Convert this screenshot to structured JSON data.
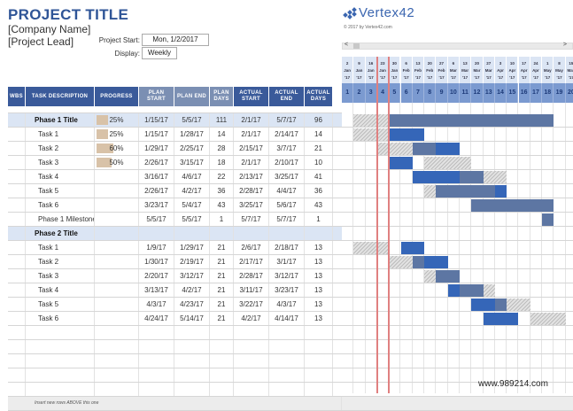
{
  "header": {
    "title": "PROJECT TITLE",
    "company": "[Company Name]",
    "lead": "[Project Lead]",
    "project_start_label": "Project Start:",
    "project_start_value": "Mon, 1/2/2017",
    "display_label": "Display:",
    "display_value": "Weekly"
  },
  "logo": {
    "text": "Vertex42",
    "copyright": "© 2017 by Vertex42.com"
  },
  "scroll": {
    "left": "<",
    "right": ">"
  },
  "columns": [
    "WBS",
    "TASK DESCRIPTION",
    "PROGRESS",
    "PLAN START",
    "PLAN END",
    "PLAN DAYS",
    "ACTUAL START",
    "ACTUAL END",
    "ACTUAL DAYS"
  ],
  "accent_colors": {
    "header_blue": "#3a5a9a",
    "header_gray": "#7b8fb3",
    "phase_row": "#dbe5f4",
    "progress": "#d8c2a8",
    "bar_plan": "#5d76a3",
    "bar_actual": "#3566b8",
    "today_line": "#e08080"
  },
  "rows": [
    {
      "type": "phase",
      "desc": "Phase 1 Title",
      "progress": "25%",
      "pct": 25,
      "plan_start": "1/15/17",
      "plan_end": "5/5/17",
      "plan_days": "111",
      "actual_start": "2/1/17",
      "actual_end": "5/7/17",
      "actual_days": "96"
    },
    {
      "type": "task",
      "desc": "Task 1",
      "progress": "25%",
      "pct": 25,
      "plan_start": "1/15/17",
      "plan_end": "1/28/17",
      "plan_days": "14",
      "actual_start": "2/1/17",
      "actual_end": "2/14/17",
      "actual_days": "14"
    },
    {
      "type": "task",
      "desc": "Task 2",
      "progress": "60%",
      "pct": 60,
      "plan_start": "1/29/17",
      "plan_end": "2/25/17",
      "plan_days": "28",
      "actual_start": "2/15/17",
      "actual_end": "3/7/17",
      "actual_days": "21"
    },
    {
      "type": "task",
      "desc": "Task 3",
      "progress": "50%",
      "pct": 50,
      "plan_start": "2/26/17",
      "plan_end": "3/15/17",
      "plan_days": "18",
      "actual_start": "2/1/17",
      "actual_end": "2/10/17",
      "actual_days": "10"
    },
    {
      "type": "task",
      "desc": "Task 4",
      "progress": "",
      "pct": 0,
      "plan_start": "3/16/17",
      "plan_end": "4/6/17",
      "plan_days": "22",
      "actual_start": "2/13/17",
      "actual_end": "3/25/17",
      "actual_days": "41"
    },
    {
      "type": "task",
      "desc": "Task 5",
      "progress": "",
      "pct": 0,
      "plan_start": "2/26/17",
      "plan_end": "4/2/17",
      "plan_days": "36",
      "actual_start": "2/28/17",
      "actual_end": "4/4/17",
      "actual_days": "36"
    },
    {
      "type": "task",
      "desc": "Task 6",
      "progress": "",
      "pct": 0,
      "plan_start": "3/23/17",
      "plan_end": "5/4/17",
      "plan_days": "43",
      "actual_start": "3/25/17",
      "actual_end": "5/6/17",
      "actual_days": "43"
    },
    {
      "type": "task",
      "desc": "Phase 1 Milestone",
      "progress": "",
      "pct": 0,
      "plan_start": "5/5/17",
      "plan_end": "5/5/17",
      "plan_days": "1",
      "actual_start": "5/7/17",
      "actual_end": "5/7/17",
      "actual_days": "1"
    },
    {
      "type": "phase",
      "desc": "Phase 2 Title",
      "progress": "",
      "pct": 0,
      "plan_start": "",
      "plan_end": "",
      "plan_days": "",
      "actual_start": "",
      "actual_end": "",
      "actual_days": ""
    },
    {
      "type": "task",
      "desc": "Task 1",
      "progress": "",
      "pct": 0,
      "plan_start": "1/9/17",
      "plan_end": "1/29/17",
      "plan_days": "21",
      "actual_start": "2/6/17",
      "actual_end": "2/18/17",
      "actual_days": "13"
    },
    {
      "type": "task",
      "desc": "Task 2",
      "progress": "",
      "pct": 0,
      "plan_start": "1/30/17",
      "plan_end": "2/19/17",
      "plan_days": "21",
      "actual_start": "2/17/17",
      "actual_end": "3/1/17",
      "actual_days": "13"
    },
    {
      "type": "task",
      "desc": "Task 3",
      "progress": "",
      "pct": 0,
      "plan_start": "2/20/17",
      "plan_end": "3/12/17",
      "plan_days": "21",
      "actual_start": "2/28/17",
      "actual_end": "3/12/17",
      "actual_days": "13"
    },
    {
      "type": "task",
      "desc": "Task 4",
      "progress": "",
      "pct": 0,
      "plan_start": "3/13/17",
      "plan_end": "4/2/17",
      "plan_days": "21",
      "actual_start": "3/11/17",
      "actual_end": "3/23/17",
      "actual_days": "13"
    },
    {
      "type": "task",
      "desc": "Task 5",
      "progress": "",
      "pct": 0,
      "plan_start": "4/3/17",
      "plan_end": "4/23/17",
      "plan_days": "21",
      "actual_start": "3/22/17",
      "actual_end": "4/3/17",
      "actual_days": "13"
    },
    {
      "type": "task",
      "desc": "Task 6",
      "progress": "",
      "pct": 0,
      "plan_start": "4/24/17",
      "plan_end": "5/14/17",
      "plan_days": "21",
      "actual_start": "4/2/17",
      "actual_end": "4/14/17",
      "actual_days": "13"
    },
    {
      "type": "empty"
    },
    {
      "type": "empty"
    },
    {
      "type": "empty"
    },
    {
      "type": "empty"
    },
    {
      "type": "empty"
    }
  ],
  "footer_note": "Insert new rows ABOVE this one",
  "timeline": {
    "weeks": [
      {
        "d": "2",
        "m": "Jan",
        "y": "'17"
      },
      {
        "d": "9",
        "m": "Jan",
        "y": "'17"
      },
      {
        "d": "16",
        "m": "Jan",
        "y": "'17"
      },
      {
        "d": "23",
        "m": "Jan",
        "y": "'17"
      },
      {
        "d": "30",
        "m": "Jan",
        "y": "'17"
      },
      {
        "d": "6",
        "m": "Feb",
        "y": "'17"
      },
      {
        "d": "13",
        "m": "Feb",
        "y": "'17"
      },
      {
        "d": "20",
        "m": "Feb",
        "y": "'17"
      },
      {
        "d": "27",
        "m": "Feb",
        "y": "'17"
      },
      {
        "d": "6",
        "m": "Mar",
        "y": "'17"
      },
      {
        "d": "13",
        "m": "Mar",
        "y": "'17"
      },
      {
        "d": "20",
        "m": "Mar",
        "y": "'17"
      },
      {
        "d": "27",
        "m": "Mar",
        "y": "'17"
      },
      {
        "d": "3",
        "m": "Apr",
        "y": "'17"
      },
      {
        "d": "10",
        "m": "Apr",
        "y": "'17"
      },
      {
        "d": "17",
        "m": "Apr",
        "y": "'17"
      },
      {
        "d": "24",
        "m": "Apr",
        "y": "'17"
      },
      {
        "d": "1",
        "m": "May",
        "y": "'17"
      },
      {
        "d": "8",
        "m": "May",
        "y": "'17"
      },
      {
        "d": "15",
        "m": "May",
        "y": "'17"
      }
    ],
    "week_numbers": [
      "1",
      "2",
      "3",
      "4",
      "5",
      "6",
      "7",
      "8",
      "9",
      "10",
      "11",
      "12",
      "13",
      "14",
      "15",
      "16",
      "17",
      "18",
      "19",
      "20"
    ],
    "today_lines_col": [
      3,
      4
    ]
  },
  "gantt_bars": [
    [
      {
        "k": "hatch",
        "s": 1,
        "e": 4
      },
      {
        "k": "dark",
        "s": 4,
        "e": 18
      }
    ],
    [
      {
        "k": "hatch",
        "s": 1,
        "e": 4
      },
      {
        "k": "blue",
        "s": 4,
        "e": 7
      }
    ],
    [
      {
        "k": "hatch",
        "s": 3,
        "e": 6
      },
      {
        "k": "dark",
        "s": 6,
        "e": 8
      },
      {
        "k": "blue",
        "s": 8,
        "e": 10
      }
    ],
    [
      {
        "k": "blue",
        "s": 4,
        "e": 6
      },
      {
        "k": "hatch",
        "s": 7,
        "e": 11
      }
    ],
    [
      {
        "k": "blue",
        "s": 6,
        "e": 10
      },
      {
        "k": "dark",
        "s": 10,
        "e": 12
      },
      {
        "k": "hatch",
        "s": 12,
        "e": 14
      }
    ],
    [
      {
        "k": "hatch",
        "s": 7,
        "e": 8
      },
      {
        "k": "dark",
        "s": 8,
        "e": 13
      },
      {
        "k": "blue",
        "s": 13,
        "e": 14
      }
    ],
    [
      {
        "k": "dark",
        "s": 11,
        "e": 18
      }
    ],
    [
      {
        "k": "dark",
        "s": 17,
        "e": 18
      }
    ],
    [],
    [
      {
        "k": "hatch",
        "s": 1,
        "e": 4
      },
      {
        "k": "blue",
        "s": 5,
        "e": 7
      }
    ],
    [
      {
        "k": "hatch",
        "s": 4,
        "e": 6
      },
      {
        "k": "dark",
        "s": 6,
        "e": 7
      },
      {
        "k": "blue",
        "s": 7,
        "e": 9
      }
    ],
    [
      {
        "k": "hatch",
        "s": 7,
        "e": 8
      },
      {
        "k": "dark",
        "s": 8,
        "e": 10
      }
    ],
    [
      {
        "k": "blue",
        "s": 9,
        "e": 10
      },
      {
        "k": "dark",
        "s": 10,
        "e": 12
      },
      {
        "k": "hatch",
        "s": 12,
        "e": 13
      }
    ],
    [
      {
        "k": "blue",
        "s": 11,
        "e": 13
      },
      {
        "k": "dark",
        "s": 13,
        "e": 14
      },
      {
        "k": "hatch",
        "s": 14,
        "e": 16
      }
    ],
    [
      {
        "k": "blue",
        "s": 12,
        "e": 15
      },
      {
        "k": "hatch",
        "s": 16,
        "e": 19
      }
    ],
    [],
    [],
    [],
    [],
    []
  ],
  "watermark": "www.989214.com"
}
